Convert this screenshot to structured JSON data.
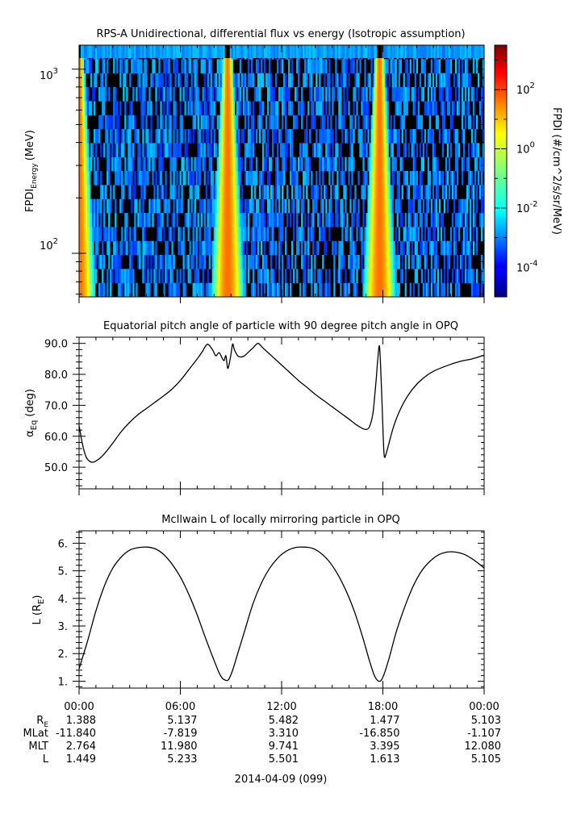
{
  "colors": {
    "axis": "#000000",
    "background": "#ffffff",
    "spec_fill": "#000000"
  },
  "panels": {
    "spec_title": "RPS-A Unidirectional, differential flux vs energy (Isotropic assumption)",
    "spec_ylabel_main": "FPDI",
    "spec_ylabel_sub": "Energy",
    "spec_ylabel_unit": "(MeV)",
    "spec_yticks": {
      "base_hi": "10",
      "exp_hi": "3",
      "base_lo": "10",
      "exp_lo": "2"
    },
    "cbar_label": "FPDI (#/cm^2/s/sr/MeV)",
    "cbar_ticks": [
      {
        "base": "10",
        "exp": "2",
        "val": 2
      },
      {
        "base": "10",
        "exp": "0",
        "val": 0
      },
      {
        "base": "10",
        "exp": "-2",
        "val": -2
      },
      {
        "base": "10",
        "exp": "-4",
        "val": -4
      }
    ],
    "pitch_title": "Equatorial pitch angle of particle with 90 degree pitch angle in OPQ",
    "pitch_ylabel_main": "α",
    "pitch_ylabel_sub": "Eq",
    "pitch_ylabel_unit": "(deg)",
    "l_title": "McIlwain L of locally mirroring particle in OPQ",
    "l_ylabel_main": "L (R",
    "l_ylabel_sub": "E",
    "l_ylabel_close": ")",
    "time_ticks": [
      "00:00",
      "06:00",
      "12:00",
      "18:00",
      "00:00"
    ],
    "date_label": "2014-04-09 (099)"
  },
  "ephemeris": {
    "rows": [
      {
        "label": "R",
        "sub": "E",
        "values": [
          "1.388",
          "5.137",
          "5.482",
          "1.477",
          "5.103"
        ]
      },
      {
        "label": "MLat",
        "sub": "",
        "values": [
          "-11.840",
          "-7.819",
          "3.310",
          "-16.850",
          "-1.107"
        ]
      },
      {
        "label": "MLT",
        "sub": "",
        "values": [
          "2.764",
          "11.980",
          "9.741",
          "3.395",
          "12.080"
        ]
      },
      {
        "label": "L",
        "sub": "",
        "values": [
          "1.449",
          "5.233",
          "5.501",
          "1.613",
          "5.105"
        ]
      }
    ]
  },
  "chart_data": [
    {
      "type": "heatmap",
      "title": "RPS-A Unidirectional, differential flux vs energy (Isotropic assumption)",
      "ylabel": "FPDI Energy (MeV)",
      "yscale": "log",
      "ylim": [
        58,
        1350
      ],
      "x_range_hours": [
        0,
        24
      ],
      "zscale": "log",
      "zlim_exp": [
        -5,
        3.5
      ],
      "zlabel": "FPDI (#/cm^2/s/sr/MeV)",
      "perigee_hours": [
        0.0,
        8.8,
        17.8
      ],
      "perigee_peak_exp": 1.5,
      "background_exp": -3.6
    },
    {
      "type": "line",
      "title": "Equatorial pitch angle of particle with 90 degree pitch angle in OPQ",
      "ylabel": "α Eq (deg)",
      "ylim": [
        43,
        92
      ],
      "yticks": [
        50,
        60,
        70,
        80,
        90
      ],
      "x_range_hours": [
        0,
        24
      ],
      "x": [
        0,
        0.2,
        0.4,
        0.6,
        0.8,
        1.0,
        1.3,
        1.6,
        2.0,
        2.5,
        3.0,
        3.5,
        4.0,
        4.5,
        5.0,
        5.5,
        6.0,
        6.5,
        7.0,
        7.3,
        7.6,
        7.9,
        8.1,
        8.3,
        8.5,
        8.6,
        8.7,
        8.8,
        8.9,
        9.0,
        9.1,
        9.2,
        9.4,
        9.6,
        9.8,
        10.0,
        10.3,
        10.6,
        10.9,
        11.5,
        12.0,
        12.5,
        13.0,
        13.5,
        14.0,
        14.5,
        15.0,
        15.5,
        16.0,
        16.4,
        16.8,
        17.0,
        17.2,
        17.4,
        17.5,
        17.6,
        17.7,
        17.8,
        17.9,
        18.0,
        18.05,
        18.1,
        18.2,
        18.4,
        18.6,
        18.9,
        19.3,
        19.8,
        20.4,
        21.0,
        21.8,
        22.6,
        23.3,
        24.0
      ],
      "y": [
        63.5,
        57.5,
        53.5,
        52.0,
        51.6,
        52.0,
        53.2,
        55.0,
        57.8,
        61.5,
        64.5,
        67.0,
        69.0,
        71.0,
        73.0,
        75.2,
        78.0,
        81.5,
        85.0,
        87.3,
        89.7,
        88.0,
        86.0,
        87.0,
        85.0,
        84.5,
        86.0,
        82.0,
        83.5,
        86.5,
        89.8,
        88.0,
        86.0,
        85.6,
        86.0,
        87.0,
        88.5,
        90.0,
        88.5,
        85.5,
        83.0,
        80.5,
        78.0,
        75.8,
        73.5,
        71.5,
        69.5,
        67.5,
        65.5,
        63.8,
        62.5,
        62.2,
        63.0,
        67.0,
        72.0,
        78.0,
        85.0,
        89.0,
        78.0,
        63.0,
        56.0,
        53.2,
        54.5,
        58.5,
        62.5,
        67.0,
        71.5,
        75.5,
        78.8,
        81.0,
        82.8,
        84.2,
        85.0,
        86.2
      ]
    },
    {
      "type": "line",
      "title": "McIlwain L of locally mirroring particle in OPQ",
      "ylabel": "L (RE)",
      "ylim": [
        0.75,
        6.45
      ],
      "yticks": [
        1,
        2,
        3,
        4,
        5,
        6
      ],
      "x_range_hours": [
        0,
        24
      ],
      "x": [
        0,
        0.5,
        1.0,
        1.5,
        2.0,
        2.5,
        3.0,
        3.5,
        4.0,
        4.5,
        5.0,
        5.5,
        6.0,
        6.5,
        7.0,
        7.5,
        8.0,
        8.3,
        8.5,
        8.7,
        8.8,
        8.9,
        9.1,
        9.4,
        9.8,
        10.3,
        10.8,
        11.3,
        11.8,
        12.3,
        12.8,
        13.3,
        13.8,
        14.3,
        14.8,
        15.3,
        15.8,
        16.3,
        16.8,
        17.2,
        17.5,
        17.7,
        17.8,
        17.9,
        18.1,
        18.4,
        18.8,
        19.3,
        19.8,
        20.3,
        20.8,
        21.3,
        21.8,
        22.3,
        22.8,
        23.3,
        23.7,
        24.0
      ],
      "y": [
        1.45,
        2.45,
        3.55,
        4.45,
        5.1,
        5.5,
        5.75,
        5.84,
        5.86,
        5.8,
        5.6,
        5.25,
        4.78,
        4.15,
        3.4,
        2.55,
        1.75,
        1.3,
        1.1,
        1.03,
        1.03,
        1.1,
        1.4,
        2.0,
        2.8,
        3.8,
        4.55,
        5.1,
        5.48,
        5.72,
        5.84,
        5.86,
        5.82,
        5.65,
        5.35,
        4.9,
        4.3,
        3.55,
        2.6,
        1.75,
        1.2,
        1.02,
        1.0,
        1.03,
        1.3,
        1.9,
        2.8,
        3.7,
        4.45,
        5.0,
        5.35,
        5.58,
        5.68,
        5.68,
        5.6,
        5.43,
        5.25,
        5.1
      ]
    }
  ]
}
